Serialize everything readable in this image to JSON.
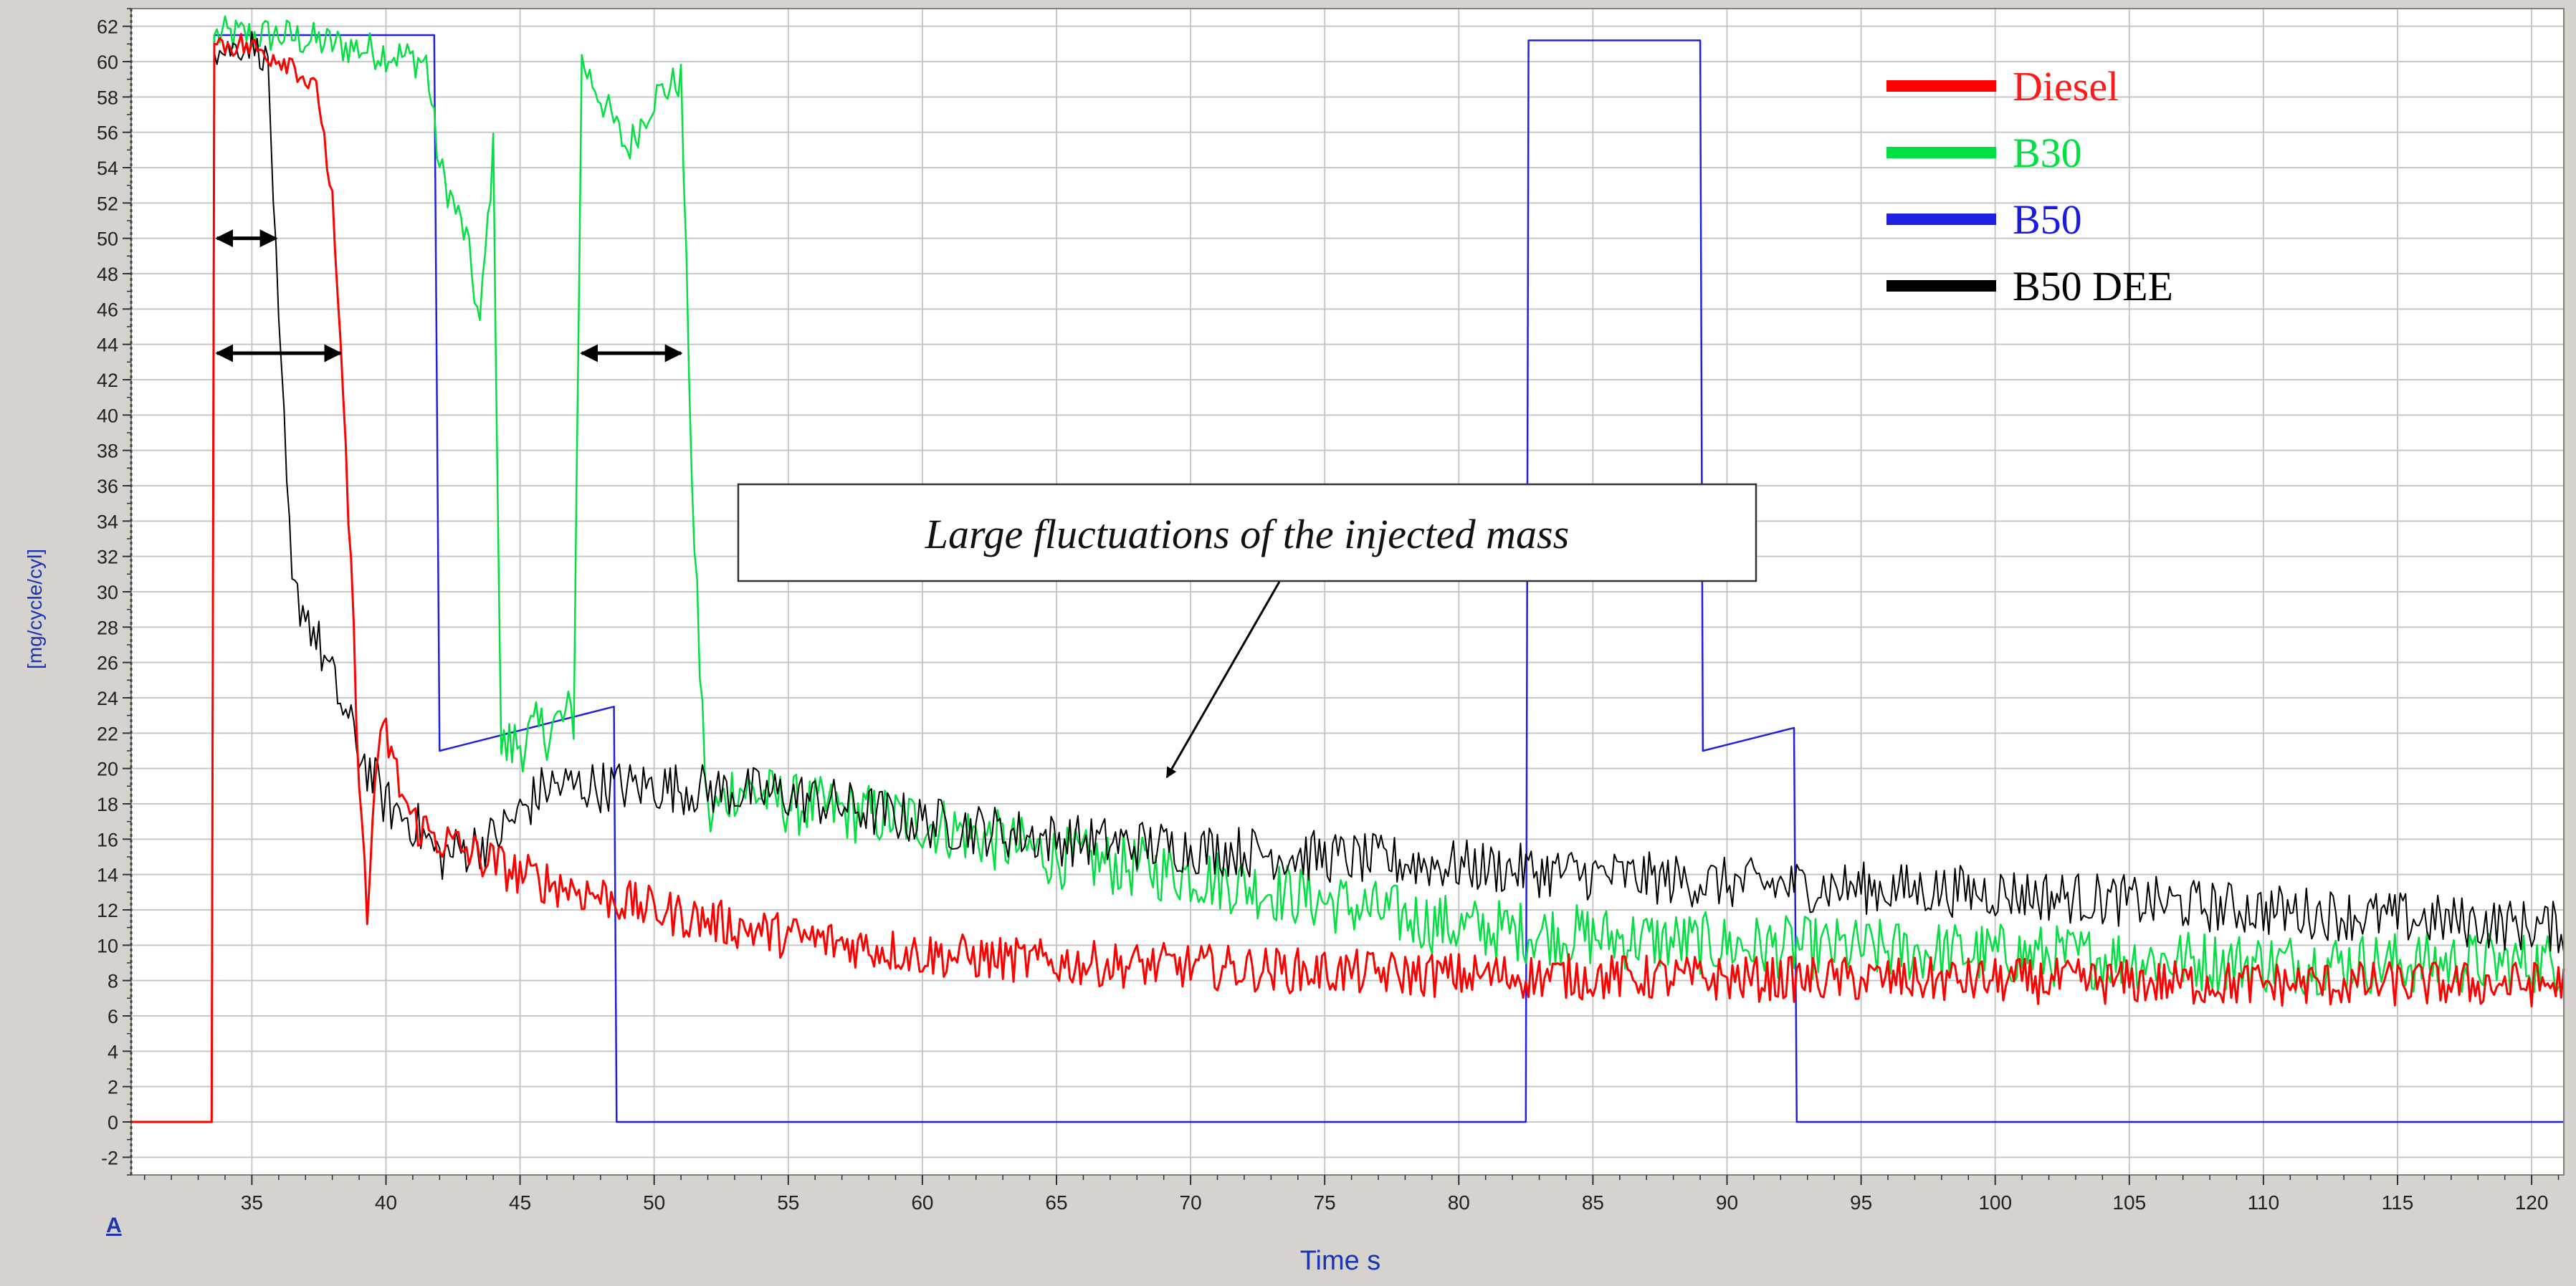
{
  "chart_data": {
    "type": "line",
    "title": "",
    "xlabel": "Time s",
    "ylabel": "[mg/cycle/cyl]",
    "xlim": [
      30.5,
      121.2
    ],
    "ylim": [
      -3,
      63
    ],
    "x_ticks": [
      35,
      40,
      45,
      50,
      55,
      60,
      65,
      70,
      75,
      80,
      85,
      90,
      95,
      100,
      105,
      110,
      115,
      120
    ],
    "y_ticks": [
      -2,
      0,
      2,
      4,
      6,
      8,
      10,
      12,
      14,
      16,
      18,
      20,
      22,
      24,
      26,
      28,
      30,
      32,
      34,
      36,
      38,
      40,
      42,
      44,
      46,
      48,
      50,
      52,
      54,
      56,
      58,
      60,
      62
    ],
    "grid": true,
    "legend_position": "top-right",
    "corner_mark": "A",
    "series": [
      {
        "name": "Diesel",
        "color": "#ff0000",
        "noise": 1.3,
        "points": [
          [
            30.5,
            0
          ],
          [
            33,
            0
          ],
          [
            33.5,
            0
          ],
          [
            33.6,
            61
          ],
          [
            34.5,
            61
          ],
          [
            35.5,
            60.5
          ],
          [
            36.5,
            60
          ],
          [
            37.5,
            58
          ],
          [
            38,
            52
          ],
          [
            38.5,
            38
          ],
          [
            39,
            20
          ],
          [
            39.3,
            11
          ],
          [
            39.6,
            20
          ],
          [
            40,
            22
          ],
          [
            40.5,
            19
          ],
          [
            41,
            17
          ],
          [
            42,
            16
          ],
          [
            45,
            14
          ],
          [
            50,
            12
          ],
          [
            55,
            10.5
          ],
          [
            60,
            9.5
          ],
          [
            65,
            9
          ],
          [
            70,
            8.8
          ],
          [
            75,
            8.5
          ],
          [
            80,
            8.3
          ],
          [
            85,
            8.2
          ],
          [
            90,
            8.1
          ],
          [
            100,
            8
          ],
          [
            110,
            7.8
          ],
          [
            121,
            7.8
          ]
        ]
      },
      {
        "name": "B30",
        "color": "#00e040",
        "noise": 1.8,
        "points": [
          [
            30.5,
            0
          ],
          [
            33,
            0
          ],
          [
            33.5,
            0
          ],
          [
            33.6,
            61.5
          ],
          [
            36,
            61.5
          ],
          [
            38,
            61
          ],
          [
            40,
            60.5
          ],
          [
            41.5,
            60
          ],
          [
            42,
            54
          ],
          [
            43,
            50
          ],
          [
            43.5,
            45
          ],
          [
            44,
            55
          ],
          [
            44.3,
            21
          ],
          [
            47,
            23
          ],
          [
            47.3,
            60
          ],
          [
            48,
            58
          ],
          [
            49,
            55
          ],
          [
            50,
            58
          ],
          [
            51,
            59
          ],
          [
            51.5,
            32
          ],
          [
            52,
            17
          ],
          [
            53,
            19
          ],
          [
            55,
            18
          ],
          [
            60,
            17
          ],
          [
            65,
            15
          ],
          [
            70,
            14
          ],
          [
            75,
            12.5
          ],
          [
            80,
            11
          ],
          [
            85,
            10.5
          ],
          [
            90,
            10
          ],
          [
            100,
            9.5
          ],
          [
            110,
            9
          ],
          [
            121,
            9
          ]
        ]
      },
      {
        "name": "B50",
        "color": "#2020e0",
        "noise": 0,
        "points": [
          [
            30.5,
            0
          ],
          [
            33,
            0
          ],
          [
            33.5,
            0
          ],
          [
            33.6,
            61.5
          ],
          [
            41.8,
            61.5
          ],
          [
            42,
            21
          ],
          [
            48.5,
            23.5
          ],
          [
            48.6,
            0
          ],
          [
            82.5,
            0
          ],
          [
            82.6,
            61.2
          ],
          [
            89,
            61.2
          ],
          [
            89.1,
            21
          ],
          [
            92.5,
            22.3
          ],
          [
            92.6,
            0
          ],
          [
            121.2,
            0
          ]
        ]
      },
      {
        "name": "B50 DEE",
        "color": "#000000",
        "noise": 1.5,
        "points": [
          [
            30.5,
            0
          ],
          [
            33,
            0
          ],
          [
            33.5,
            0
          ],
          [
            33.6,
            60.5
          ],
          [
            35,
            61
          ],
          [
            35.6,
            60
          ],
          [
            36,
            45
          ],
          [
            36.5,
            30
          ],
          [
            37,
            29
          ],
          [
            38,
            25
          ],
          [
            39,
            21
          ],
          [
            40,
            18
          ],
          [
            41,
            17
          ],
          [
            42,
            15
          ],
          [
            44,
            16
          ],
          [
            46,
            19
          ],
          [
            50,
            19
          ],
          [
            55,
            18.5
          ],
          [
            60,
            17
          ],
          [
            65,
            16
          ],
          [
            70,
            15.5
          ],
          [
            75,
            15
          ],
          [
            80,
            14.5
          ],
          [
            85,
            14
          ],
          [
            90,
            13.5
          ],
          [
            100,
            13
          ],
          [
            110,
            12
          ],
          [
            121,
            11
          ]
        ]
      }
    ],
    "annotations": [
      {
        "text": "Large fluctuations of the injected mass"
      }
    ]
  }
}
